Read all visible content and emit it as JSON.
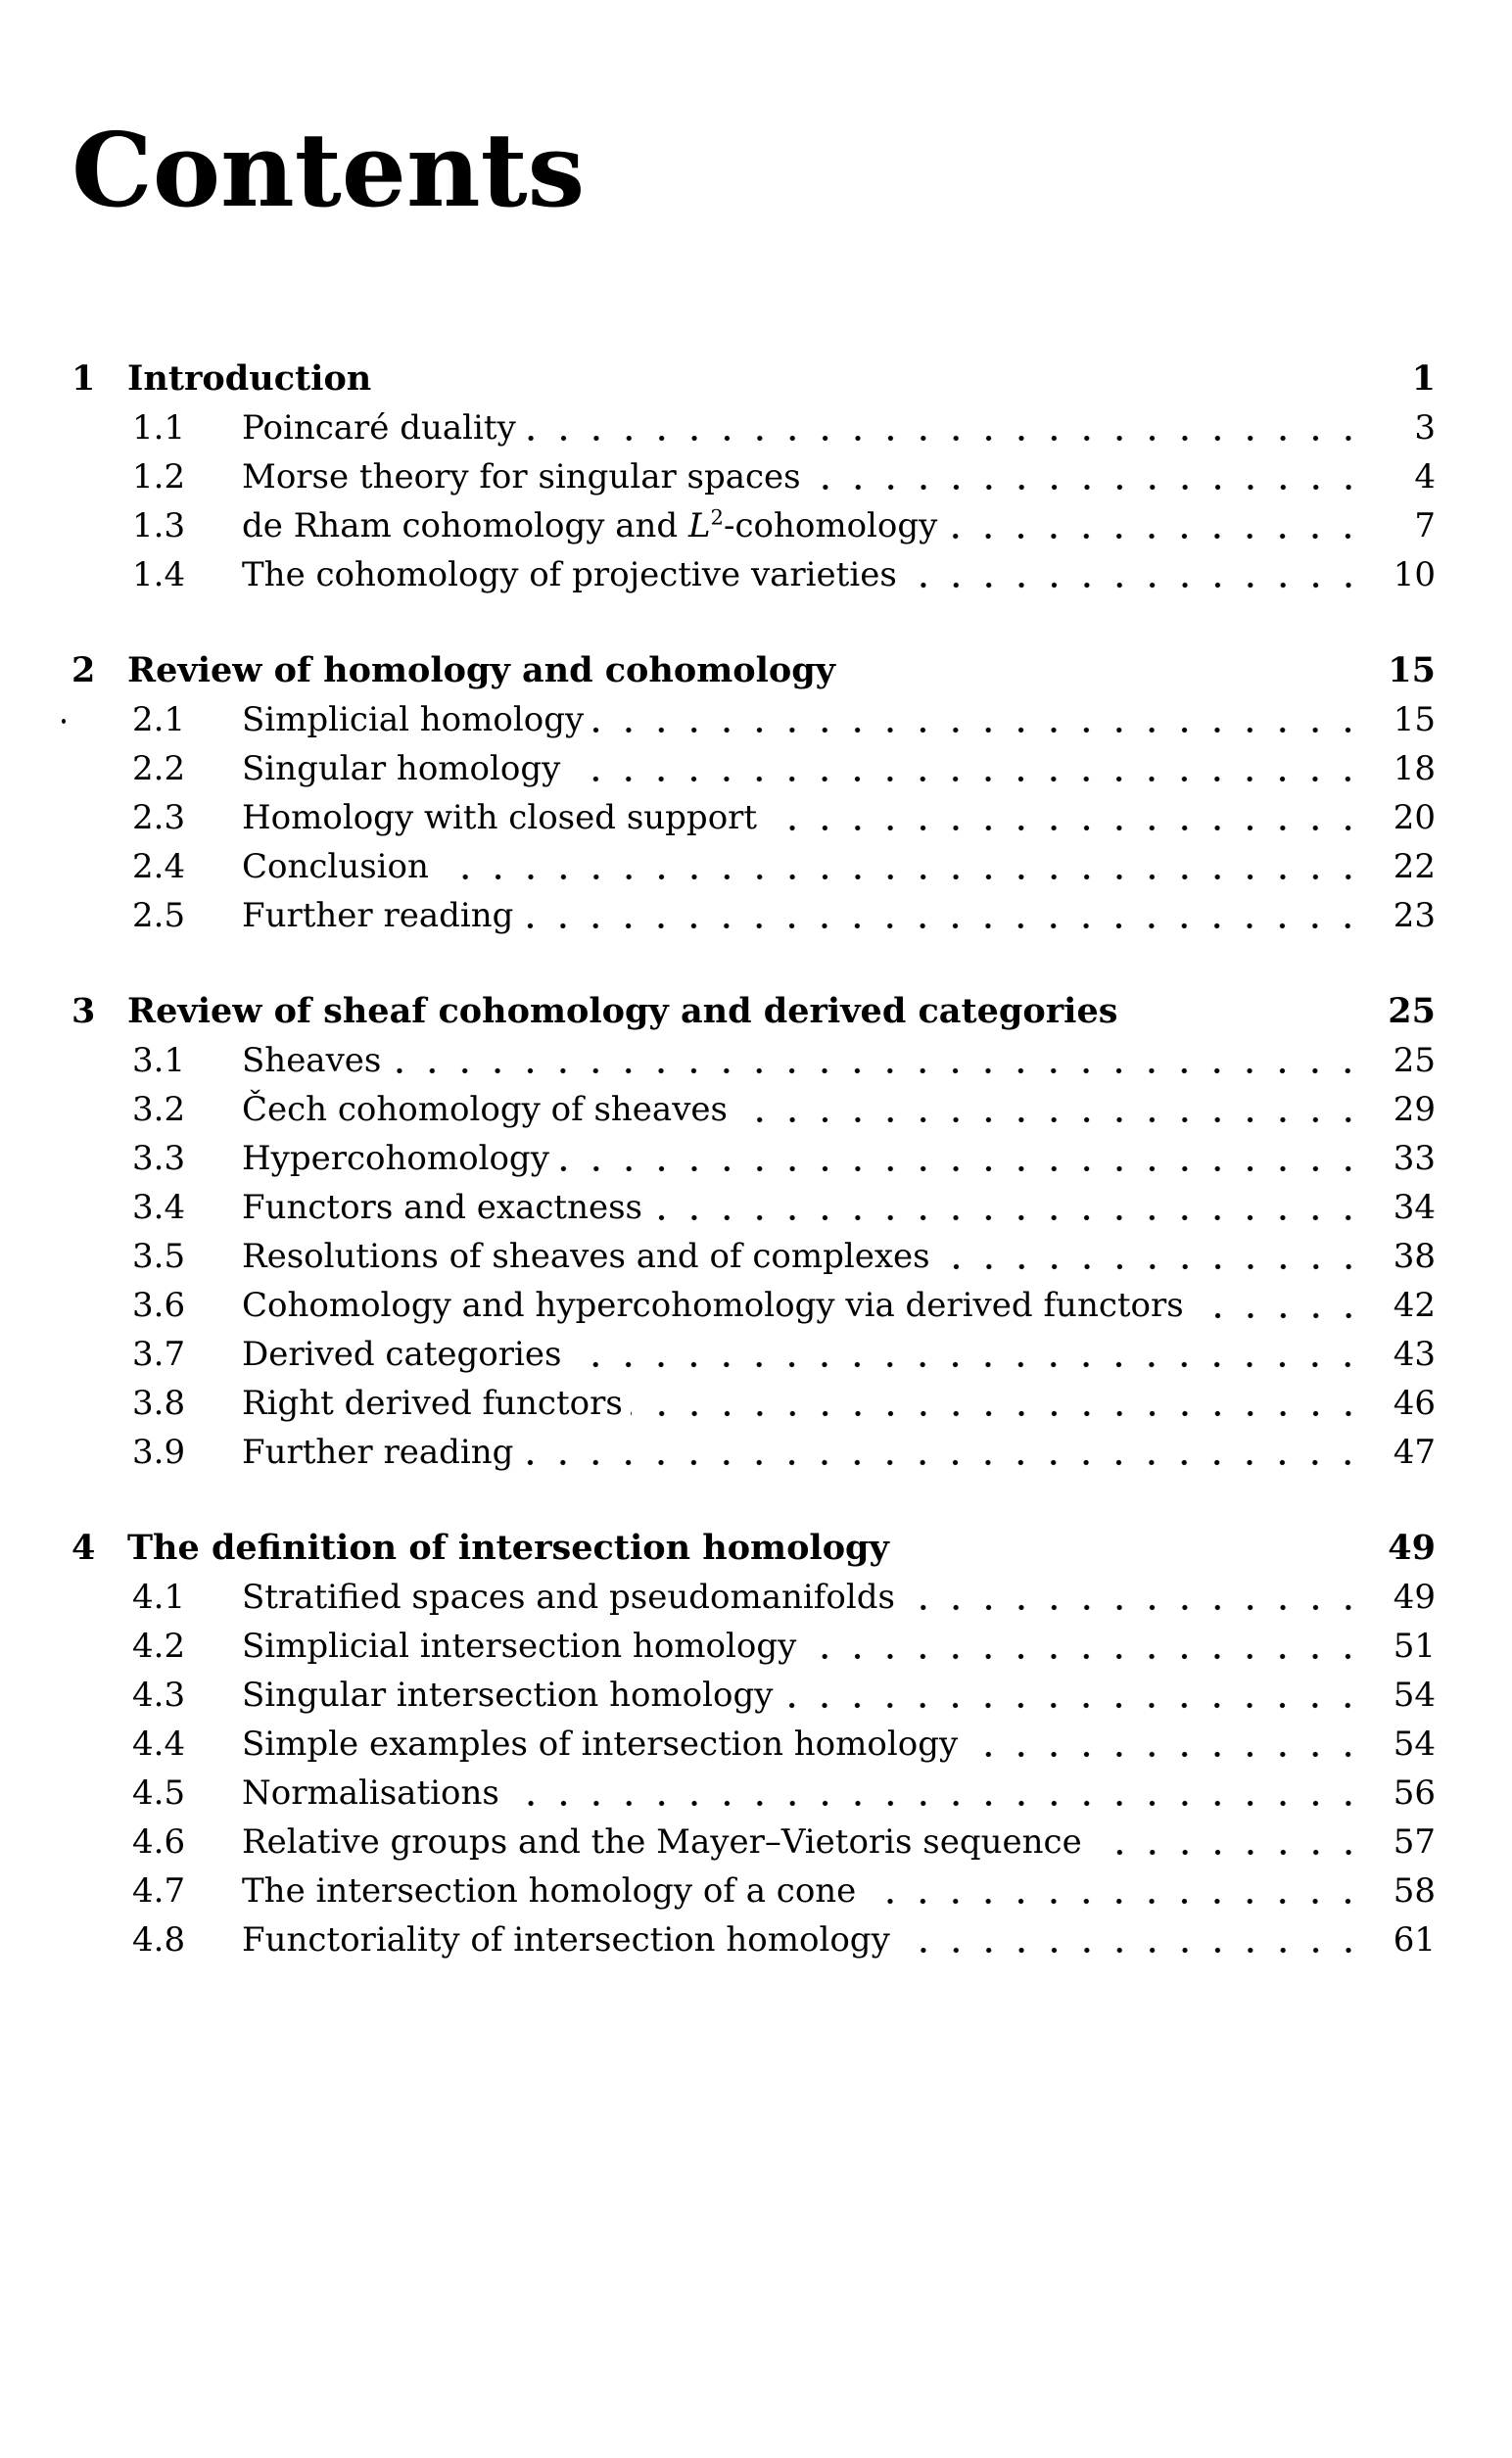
{
  "colors": {
    "ink": "#000000",
    "paper": "#ffffff"
  },
  "page": {
    "title": "Contents"
  },
  "toc": {
    "chapters": [
      {
        "num": "1",
        "title": "Introduction",
        "page": "1",
        "sections": [
          {
            "num": "1.1",
            "title": "Poincaré duality",
            "page": "3"
          },
          {
            "num": "1.2",
            "title": "Morse theory for singular spaces",
            "page": "4"
          },
          {
            "num": "1.3",
            "title_rich": [
              {
                "t": "de Rham cohomology and "
              },
              {
                "t": "L",
                "style": "italic"
              },
              {
                "t": "2",
                "style": "sup"
              },
              {
                "t": "-cohomology"
              }
            ],
            "page": "7"
          },
          {
            "num": "1.4",
            "title": "The cohomology of projective varieties",
            "page": "10"
          }
        ]
      },
      {
        "num": "2",
        "title": "Review of homology and cohomology",
        "page": "15",
        "sections": [
          {
            "num": "2.1",
            "title": "Simplicial homology",
            "page": "15"
          },
          {
            "num": "2.2",
            "title": "Singular homology",
            "page": "18"
          },
          {
            "num": "2.3",
            "title": "Homology with closed support",
            "page": "20"
          },
          {
            "num": "2.4",
            "title": "Conclusion",
            "page": "22"
          },
          {
            "num": "2.5",
            "title": "Further reading",
            "page": "23"
          }
        ]
      },
      {
        "num": "3",
        "title": "Review of sheaf cohomology and derived categories",
        "page": "25",
        "sections": [
          {
            "num": "3.1",
            "title": "Sheaves",
            "page": "25"
          },
          {
            "num": "3.2",
            "title": "Čech cohomology of sheaves",
            "page": "29"
          },
          {
            "num": "3.3",
            "title": "Hypercohomology",
            "page": "33"
          },
          {
            "num": "3.4",
            "title": "Functors and exactness",
            "page": "34"
          },
          {
            "num": "3.5",
            "title": "Resolutions of sheaves and of complexes",
            "page": "38"
          },
          {
            "num": "3.6",
            "title": "Cohomology and hypercohomology via derived functors",
            "page": "42"
          },
          {
            "num": "3.7",
            "title": "Derived categories",
            "page": "43"
          },
          {
            "num": "3.8",
            "title": "Right derived functors",
            "page": "46"
          },
          {
            "num": "3.9",
            "title": "Further reading",
            "page": "47"
          }
        ]
      },
      {
        "num": "4",
        "title": "The definition of intersection homology",
        "page": "49",
        "sections": [
          {
            "num": "4.1",
            "title": "Stratified spaces and pseudomanifolds",
            "page": "49"
          },
          {
            "num": "4.2",
            "title": "Simplicial intersection homology",
            "page": "51"
          },
          {
            "num": "4.3",
            "title": "Singular intersection homology",
            "page": "54"
          },
          {
            "num": "4.4",
            "title": "Simple examples of intersection homology",
            "page": "54"
          },
          {
            "num": "4.5",
            "title": "Normalisations",
            "page": "56"
          },
          {
            "num": "4.6",
            "title": "Relative groups and the Mayer–Vietoris sequence",
            "page": "57"
          },
          {
            "num": "4.7",
            "title": "The intersection homology of a cone",
            "page": "58"
          },
          {
            "num": "4.8",
            "title": "Functoriality of intersection homology",
            "page": "61"
          }
        ]
      }
    ]
  }
}
